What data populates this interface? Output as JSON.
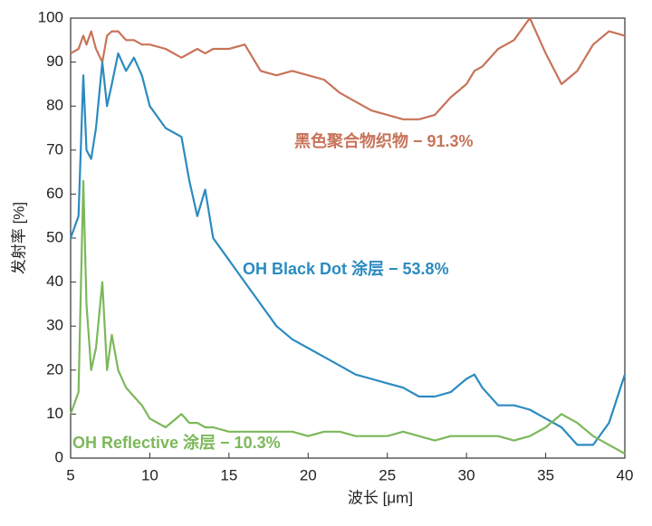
{
  "chart_data": {
    "type": "line",
    "xlabel": "波长 [μm]",
    "ylabel": "发射率 [%]",
    "x": [
      5,
      5.5,
      5.8,
      6,
      6.3,
      6.6,
      7,
      7.3,
      7.6,
      8,
      8.5,
      9,
      9.5,
      10,
      11,
      12,
      12.5,
      13,
      13.5,
      14,
      15,
      16,
      17,
      18,
      19,
      20,
      21,
      22,
      23,
      24,
      25,
      26,
      27,
      28,
      29,
      30,
      30.5,
      31,
      32,
      33,
      34,
      35,
      36,
      37,
      38,
      39,
      40
    ],
    "series": [
      {
        "name": "黑色聚合物织物 − 91.3%",
        "color": "#c8735a",
        "values": [
          92,
          93,
          96,
          94,
          97,
          93,
          90,
          96,
          97,
          97,
          95,
          95,
          94,
          94,
          93,
          91,
          92,
          93,
          92,
          93,
          93,
          94,
          88,
          87,
          88,
          87,
          86,
          83,
          81,
          79,
          78,
          77,
          77,
          78,
          82,
          85,
          88,
          89,
          93,
          95,
          100,
          92,
          85,
          88,
          94,
          97,
          96
        ]
      },
      {
        "name": "OH Black Dot 涂层 − 53.8%",
        "color": "#2b8bc0",
        "values": [
          50,
          55,
          87,
          70,
          68,
          75,
          90,
          80,
          85,
          92,
          88,
          91,
          87,
          80,
          75,
          73,
          63,
          55,
          61,
          50,
          45,
          40,
          35,
          30,
          27,
          25,
          23,
          21,
          19,
          18,
          17,
          16,
          14,
          14,
          15,
          18,
          19,
          16,
          12,
          12,
          11,
          9,
          7,
          3,
          3,
          8,
          19
        ]
      },
      {
        "name": "OH Reflective 涂层 − 10.3%",
        "color": "#7cb85a",
        "values": [
          10,
          15,
          63,
          35,
          20,
          25,
          40,
          20,
          28,
          20,
          16,
          14,
          12,
          9,
          7,
          10,
          8,
          8,
          7,
          7,
          6,
          6,
          6,
          6,
          6,
          5,
          6,
          6,
          5,
          5,
          5,
          6,
          5,
          4,
          5,
          5,
          5,
          5,
          5,
          4,
          5,
          7,
          10,
          8,
          5,
          3,
          1
        ]
      }
    ],
    "xlim": [
      5,
      40
    ],
    "xticks": [
      5,
      10,
      15,
      20,
      25,
      30,
      35,
      40
    ],
    "ylim": [
      0,
      100
    ],
    "yticks": [
      0,
      10,
      20,
      30,
      40,
      50,
      60,
      70,
      80,
      90,
      100
    ]
  }
}
